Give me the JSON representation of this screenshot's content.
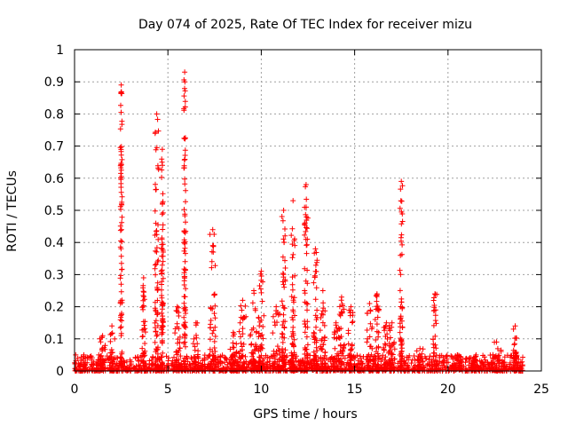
{
  "chart_data": {
    "type": "scatter",
    "title": "Day 074 of 2025, Rate Of TEC Index for receiver mizu",
    "xlabel": "GPS time / hours",
    "ylabel": "ROTI / TECUs",
    "xlim": [
      0,
      25
    ],
    "ylim": [
      0,
      1
    ],
    "xticks": [
      "0",
      "5",
      "10",
      "15",
      "20",
      "25"
    ],
    "yticks": [
      "0",
      "0.1",
      "0.2",
      "0.3",
      "0.4",
      "0.5",
      "0.6",
      "0.7",
      "0.8",
      "0.9",
      "1"
    ],
    "grid": true,
    "marker": "+",
    "series": [
      {
        "name": "ROTI",
        "color": "#ff0000",
        "baseline": {
          "x_start": 0,
          "x_end": 24,
          "y_min": 0,
          "y_max": 0.05
        },
        "bursts": [
          {
            "x": 0.5,
            "width": 0.5,
            "ymax": 0.05
          },
          {
            "x": 1.5,
            "width": 0.3,
            "ymax": 0.11
          },
          {
            "x": 2.0,
            "width": 0.3,
            "ymax": 0.14
          },
          {
            "x": 2.5,
            "width": 0.1,
            "ymax": 0.89
          },
          {
            "x": 3.7,
            "width": 0.2,
            "ymax": 0.29
          },
          {
            "x": 4.4,
            "width": 0.2,
            "ymax": 0.8
          },
          {
            "x": 4.7,
            "width": 0.1,
            "ymax": 0.69
          },
          {
            "x": 5.5,
            "width": 0.3,
            "ymax": 0.2
          },
          {
            "x": 5.9,
            "width": 0.1,
            "ymax": 0.93
          },
          {
            "x": 6.5,
            "width": 0.3,
            "ymax": 0.15
          },
          {
            "x": 7.4,
            "width": 0.3,
            "ymax": 0.44
          },
          {
            "x": 8.5,
            "width": 0.4,
            "ymax": 0.12
          },
          {
            "x": 9.0,
            "width": 0.4,
            "ymax": 0.22
          },
          {
            "x": 9.6,
            "width": 0.4,
            "ymax": 0.25
          },
          {
            "x": 10.0,
            "width": 0.3,
            "ymax": 0.31
          },
          {
            "x": 10.8,
            "width": 0.4,
            "ymax": 0.2
          },
          {
            "x": 11.2,
            "width": 0.2,
            "ymax": 0.5
          },
          {
            "x": 11.7,
            "width": 0.2,
            "ymax": 0.53
          },
          {
            "x": 12.4,
            "width": 0.2,
            "ymax": 0.58
          },
          {
            "x": 12.9,
            "width": 0.2,
            "ymax": 0.38
          },
          {
            "x": 13.3,
            "width": 0.3,
            "ymax": 0.25
          },
          {
            "x": 14.0,
            "width": 0.3,
            "ymax": 0.15
          },
          {
            "x": 14.3,
            "width": 0.3,
            "ymax": 0.23
          },
          {
            "x": 14.8,
            "width": 0.3,
            "ymax": 0.2
          },
          {
            "x": 15.8,
            "width": 0.3,
            "ymax": 0.21
          },
          {
            "x": 16.2,
            "width": 0.2,
            "ymax": 0.24
          },
          {
            "x": 16.7,
            "width": 0.4,
            "ymax": 0.15
          },
          {
            "x": 17.0,
            "width": 0.3,
            "ymax": 0.15
          },
          {
            "x": 17.5,
            "width": 0.15,
            "ymax": 0.59
          },
          {
            "x": 18.5,
            "width": 0.4,
            "ymax": 0.07
          },
          {
            "x": 19.3,
            "width": 0.2,
            "ymax": 0.24
          },
          {
            "x": 20.5,
            "width": 0.5,
            "ymax": 0.05
          },
          {
            "x": 21.5,
            "width": 0.5,
            "ymax": 0.05
          },
          {
            "x": 22.6,
            "width": 0.6,
            "ymax": 0.09
          },
          {
            "x": 23.6,
            "width": 0.2,
            "ymax": 0.14
          }
        ]
      }
    ]
  }
}
